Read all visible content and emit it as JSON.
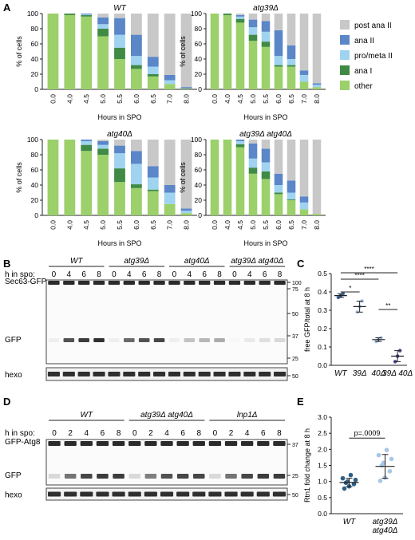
{
  "colors": {
    "post_ana_II": "#c8c8c8",
    "ana_II": "#5b86c8",
    "pro_meta_II": "#9fd3ef",
    "ana_I": "#3f8a45",
    "other": "#9bd06a",
    "dot_dark": "#2e5f86",
    "dot_mid": "#4a7ab3",
    "dot_purple": "#5e4b9a",
    "dot_light": "#a9c6e8"
  },
  "panel_letters": {
    "A": "A",
    "B": "B",
    "C": "C",
    "D": "D",
    "E": "E"
  },
  "legend": [
    "post ana II",
    "ana II",
    "pro/meta II",
    "ana I",
    "other"
  ],
  "chart_data": [
    {
      "type": "bar",
      "stacked": true,
      "title": "WT",
      "xlabel": "Hours in SPO",
      "ylabel": "% of cells",
      "ylim": [
        0,
        100
      ],
      "yticks": [
        "0",
        "20",
        "40",
        "60",
        "80",
        "100"
      ],
      "categories": [
        "0.0",
        "4.0",
        "4.5",
        "5.0",
        "5.5",
        "6.0",
        "6.5",
        "7.0",
        "8.0"
      ],
      "series": [
        {
          "name": "other",
          "values": [
            100,
            98,
            96,
            70,
            40,
            27,
            17,
            7,
            1
          ]
        },
        {
          "name": "ana I",
          "values": [
            0,
            2,
            2,
            10,
            15,
            5,
            3,
            0,
            0
          ]
        },
        {
          "name": "pro/meta II",
          "values": [
            0,
            0,
            1,
            6,
            17,
            12,
            10,
            5,
            0
          ]
        },
        {
          "name": "ana II",
          "values": [
            0,
            0,
            1,
            9,
            22,
            28,
            13,
            7,
            2
          ]
        },
        {
          "name": "post ana II",
          "values": [
            0,
            0,
            0,
            5,
            6,
            28,
            57,
            81,
            97
          ]
        }
      ]
    },
    {
      "type": "bar",
      "stacked": true,
      "title": "atg39Δ",
      "xlabel": "Hours in SPO",
      "ylabel": "% of cells",
      "ylim": [
        0,
        100
      ],
      "yticks": [
        "0",
        "20",
        "40",
        "60",
        "80",
        "100"
      ],
      "categories": [
        "0.0",
        "4.0",
        "4.5",
        "5.0",
        "5.5",
        "6.0",
        "6.5",
        "7.0",
        "8.0"
      ],
      "series": [
        {
          "name": "other",
          "values": [
            100,
            98,
            88,
            64,
            56,
            30,
            30,
            10,
            3
          ]
        },
        {
          "name": "ana I",
          "values": [
            0,
            2,
            5,
            8,
            7,
            2,
            2,
            0,
            0
          ]
        },
        {
          "name": "pro/meta II",
          "values": [
            0,
            0,
            3,
            10,
            13,
            12,
            8,
            9,
            3
          ]
        },
        {
          "name": "ana II",
          "values": [
            0,
            0,
            2,
            10,
            14,
            34,
            18,
            6,
            2
          ]
        },
        {
          "name": "post ana II",
          "values": [
            0,
            0,
            2,
            8,
            10,
            22,
            42,
            75,
            92
          ]
        }
      ]
    },
    {
      "type": "bar",
      "stacked": true,
      "title": "atg40Δ",
      "xlabel": "Hours in SPO",
      "ylabel": "% of cells",
      "ylim": [
        0,
        100
      ],
      "yticks": [
        "0",
        "20",
        "40",
        "60",
        "80",
        "100"
      ],
      "categories": [
        "0.0",
        "4.0",
        "4.5",
        "5.0",
        "5.5",
        "6.0",
        "6.5",
        "7.0",
        "8.0"
      ],
      "series": [
        {
          "name": "other",
          "values": [
            100,
            100,
            85,
            80,
            44,
            36,
            32,
            15,
            3
          ]
        },
        {
          "name": "ana I",
          "values": [
            0,
            0,
            8,
            8,
            18,
            5,
            2,
            0,
            0
          ]
        },
        {
          "name": "pro/meta II",
          "values": [
            0,
            0,
            5,
            5,
            20,
            27,
            16,
            15,
            3
          ]
        },
        {
          "name": "ana II",
          "values": [
            0,
            0,
            2,
            5,
            10,
            17,
            15,
            10,
            3
          ]
        },
        {
          "name": "post ana II",
          "values": [
            0,
            0,
            0,
            2,
            8,
            15,
            35,
            60,
            91
          ]
        }
      ]
    },
    {
      "type": "bar",
      "stacked": true,
      "title": "atg39Δ atg40Δ",
      "xlabel": "Hours in SPO",
      "ylabel": "% of cells",
      "ylim": [
        0,
        100
      ],
      "yticks": [
        "0",
        "20",
        "40",
        "60",
        "80",
        "100"
      ],
      "categories": [
        "0.0",
        "4.0",
        "4.5",
        "5.0",
        "5.5",
        "6.0",
        "6.5",
        "7.0",
        "8.0"
      ],
      "series": [
        {
          "name": "other",
          "values": [
            100,
            100,
            90,
            55,
            48,
            28,
            20,
            8,
            2
          ]
        },
        {
          "name": "ana I",
          "values": [
            0,
            0,
            4,
            8,
            10,
            2,
            1,
            0,
            0
          ]
        },
        {
          "name": "pro/meta II",
          "values": [
            0,
            0,
            4,
            12,
            12,
            10,
            9,
            9,
            0
          ]
        },
        {
          "name": "ana II",
          "values": [
            0,
            0,
            2,
            20,
            18,
            15,
            16,
            8,
            0
          ]
        },
        {
          "name": "post ana II",
          "values": [
            0,
            0,
            0,
            5,
            12,
            45,
            54,
            75,
            98
          ]
        }
      ]
    },
    {
      "type": "scatter",
      "ylabel": "free GFP/total at 8 h",
      "ylim": [
        0,
        0.5
      ],
      "yticks": [
        "0.0",
        "0.1",
        "0.2",
        "0.3",
        "0.4",
        "0.5"
      ],
      "categories": [
        "WT",
        "39Δ",
        "40Δ",
        "39Δ 40Δ"
      ],
      "means": [
        0.38,
        0.32,
        0.14,
        0.05
      ],
      "errors": [
        0.01,
        0.03,
        0.01,
        0.03
      ],
      "points": [
        [
          0.37,
          0.38,
          0.39
        ],
        [
          0.29,
          0.32,
          0.35
        ],
        [
          0.13,
          0.14,
          0.15
        ],
        [
          0.02,
          0.05,
          0.08
        ]
      ],
      "significance": [
        {
          "from": 0,
          "to": 1,
          "label": "*"
        },
        {
          "from": 0,
          "to": 2,
          "label": "****"
        },
        {
          "from": 0,
          "to": 3,
          "label": "****"
        },
        {
          "from": 2,
          "to": 3,
          "label": "**"
        }
      ]
    },
    {
      "type": "scatter",
      "ylabel": "Rtn1 fold change at 8 h",
      "ylim": [
        0,
        3.0
      ],
      "yticks": [
        "0.0",
        "0.5",
        "1.0",
        "1.5",
        "2.0",
        "2.5",
        "3.0"
      ],
      "categories": [
        "WT",
        "atg39Δ atg40Δ"
      ],
      "category_lines": [
        [
          "WT"
        ],
        [
          "atg39Δ",
          "atg40Δ"
        ]
      ],
      "means": [
        0.97,
        1.47
      ],
      "errors": [
        0.13,
        0.37
      ],
      "points": [
        [
          0.78,
          0.85,
          0.92,
          0.96,
          1.0,
          1.05,
          1.1,
          1.2
        ],
        [
          1.02,
          1.12,
          1.32,
          1.5,
          1.58,
          1.7,
          1.82,
          1.98
        ]
      ],
      "pvalue": "p=.0009"
    }
  ],
  "blot_B": {
    "time_label": "h in spo:",
    "groups": [
      "WT",
      "atg39Δ",
      "atg40Δ",
      "atg39Δ atg40Δ"
    ],
    "lanes": [
      "0",
      "4",
      "6",
      "8",
      "0",
      "4",
      "6",
      "8",
      "0",
      "4",
      "6",
      "8",
      "0",
      "4",
      "6",
      "8"
    ],
    "row_labels": {
      "top": "Sec63-GFP",
      "gfp": "GFP",
      "hexo": "hexo"
    },
    "markers": [
      "100",
      "75",
      "50",
      "37",
      "25",
      "50"
    ],
    "gfp_intensity": [
      0.05,
      0.75,
      0.85,
      0.9,
      0.05,
      0.65,
      0.75,
      0.8,
      0.05,
      0.25,
      0.3,
      0.35,
      0.02,
      0.08,
      0.12,
      0.15
    ]
  },
  "blot_D": {
    "time_label": "h in spo:",
    "groups": [
      "WT",
      "atg39Δ atg40Δ",
      "lnp1Δ"
    ],
    "lanes": [
      "0",
      "2",
      "4",
      "6",
      "8",
      "0",
      "2",
      "4",
      "6",
      "8",
      "0",
      "2",
      "4",
      "6",
      "8"
    ],
    "row_labels": {
      "top": "GFP-Atg8",
      "gfp": "GFP",
      "hexo": "hexo"
    },
    "markers": [
      "37",
      "25",
      "50"
    ],
    "gfp_intensity": [
      0.15,
      0.6,
      0.8,
      0.85,
      0.85,
      0.15,
      0.55,
      0.75,
      0.8,
      0.8,
      0.15,
      0.6,
      0.8,
      0.85,
      0.85
    ]
  }
}
